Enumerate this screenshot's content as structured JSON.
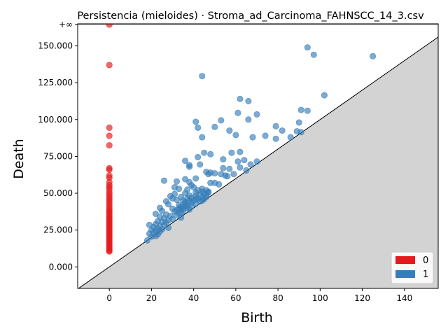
{
  "chart_data": {
    "type": "scatter",
    "title": "Persistencia (mieloides) · Stroma_ad_Carcinoma_FAHNSCC_14_3.csv",
    "xlabel": "Birth",
    "ylabel": "Death",
    "xlim": [
      -15,
      156
    ],
    "ylim": [
      -14600,
      165000
    ],
    "infinity_label": "+∞",
    "infinity_level": 164500,
    "diagonal": true,
    "x_ticks": [
      {
        "value": 0,
        "label": "0"
      },
      {
        "value": 20,
        "label": "20"
      },
      {
        "value": 40,
        "label": "40"
      },
      {
        "value": 60,
        "label": "60"
      },
      {
        "value": 80,
        "label": "80"
      },
      {
        "value": 100,
        "label": "100"
      },
      {
        "value": 120,
        "label": "120"
      },
      {
        "value": 140,
        "label": "140"
      }
    ],
    "y_ticks": [
      {
        "value": 0,
        "label": "0.000"
      },
      {
        "value": 25000,
        "label": "25.000"
      },
      {
        "value": 50000,
        "label": "50.000"
      },
      {
        "value": 75000,
        "label": "75.000"
      },
      {
        "value": 100000,
        "label": "100.000"
      },
      {
        "value": 125000,
        "label": "125.000"
      },
      {
        "value": 150000,
        "label": "150.000"
      }
    ],
    "legend": {
      "position": "lower-right",
      "entries": [
        "0",
        "1"
      ]
    },
    "colors": {
      "0": "#e41a1c",
      "1": "#377eb8",
      "shade": "#d3d3d3",
      "inf_line": "#808080"
    },
    "series": [
      {
        "name": "0",
        "color": "#e41a1c",
        "points": [
          [
            0,
            164500
          ],
          [
            0,
            137000
          ],
          [
            0,
            94500
          ],
          [
            0,
            89000
          ],
          [
            0,
            82500
          ],
          [
            0,
            67000
          ],
          [
            0,
            66000
          ],
          [
            0,
            62000
          ],
          [
            0,
            60500
          ],
          [
            0,
            57500
          ],
          [
            0,
            55500
          ],
          [
            0,
            54000
          ],
          [
            0,
            52500
          ],
          [
            0,
            50500
          ],
          [
            0,
            49000
          ],
          [
            0,
            47500
          ],
          [
            0,
            46000
          ],
          [
            0,
            44500
          ],
          [
            0,
            43000
          ],
          [
            0,
            41500
          ],
          [
            0,
            40000
          ],
          [
            0,
            38500
          ],
          [
            0,
            37500
          ],
          [
            0,
            36500
          ],
          [
            0,
            35000
          ],
          [
            0,
            34000
          ],
          [
            0,
            33000
          ],
          [
            0,
            32000
          ],
          [
            0,
            31000
          ],
          [
            0,
            30000
          ],
          [
            0,
            29000
          ],
          [
            0,
            28000
          ],
          [
            0,
            27000
          ],
          [
            0,
            26000
          ],
          [
            0,
            25000
          ],
          [
            0,
            24000
          ],
          [
            0,
            23000
          ],
          [
            0,
            22000
          ],
          [
            0,
            21000
          ],
          [
            0,
            20000
          ],
          [
            0,
            19000
          ],
          [
            0,
            18000
          ],
          [
            0,
            17000
          ],
          [
            0,
            16000
          ],
          [
            0,
            15000
          ],
          [
            0,
            14000
          ],
          [
            0,
            13000
          ],
          [
            0,
            12000
          ],
          [
            0,
            11000
          ],
          [
            0,
            10500
          ]
        ]
      },
      {
        "name": "1",
        "color": "#377eb8",
        "points": [
          [
            94,
            149000
          ],
          [
            125,
            143000
          ],
          [
            97,
            144000
          ],
          [
            44,
            129500
          ],
          [
            102,
            116500
          ],
          [
            62,
            114000
          ],
          [
            66,
            112500
          ],
          [
            91,
            106500
          ],
          [
            94,
            106000
          ],
          [
            61,
            104500
          ],
          [
            70,
            103500
          ],
          [
            53,
            99500
          ],
          [
            66,
            100000
          ],
          [
            41,
            98500
          ],
          [
            90,
            98000
          ],
          [
            79,
            95500
          ],
          [
            50,
            95000
          ],
          [
            42,
            94500
          ],
          [
            82,
            92500
          ],
          [
            57,
            92500
          ],
          [
            89,
            92000
          ],
          [
            91,
            91500
          ],
          [
            60,
            89500
          ],
          [
            74,
            89000
          ],
          [
            44,
            88000
          ],
          [
            68,
            88000
          ],
          [
            79,
            87000
          ],
          [
            86,
            88000
          ],
          [
            62,
            78000
          ],
          [
            45,
            77500
          ],
          [
            58,
            77500
          ],
          [
            48,
            76500
          ],
          [
            42,
            74500
          ],
          [
            54,
            73000
          ],
          [
            64,
            72500
          ],
          [
            36,
            72000
          ],
          [
            61,
            71500
          ],
          [
            70,
            71500
          ],
          [
            38,
            69000
          ],
          [
            43,
            69500
          ],
          [
            67,
            69500
          ],
          [
            38,
            68000
          ],
          [
            54,
            67000
          ],
          [
            57,
            66500
          ],
          [
            62,
            67500
          ],
          [
            65,
            65500
          ],
          [
            46,
            64500
          ],
          [
            47,
            63000
          ],
          [
            48,
            64000
          ],
          [
            50,
            63500
          ],
          [
            53,
            63000
          ],
          [
            55,
            62000
          ],
          [
            56,
            61500
          ],
          [
            59,
            63000
          ],
          [
            26,
            58500
          ],
          [
            36,
            59500
          ],
          [
            41,
            60000
          ],
          [
            32,
            58000
          ],
          [
            38,
            57500
          ],
          [
            48,
            57000
          ],
          [
            50,
            57000
          ],
          [
            52,
            56000
          ],
          [
            39,
            55500
          ],
          [
            31,
            54000
          ],
          [
            40,
            54000
          ],
          [
            33,
            53000
          ],
          [
            37,
            52500
          ],
          [
            42,
            52000
          ],
          [
            44,
            51000
          ],
          [
            47,
            50500
          ],
          [
            36,
            50000
          ],
          [
            31,
            49500
          ],
          [
            38,
            48500
          ],
          [
            29,
            48000
          ],
          [
            34,
            47500
          ],
          [
            46,
            47500
          ],
          [
            30,
            46500
          ],
          [
            41,
            46000
          ],
          [
            32,
            45500
          ],
          [
            44,
            45000
          ],
          [
            27,
            44500
          ],
          [
            36,
            44000
          ],
          [
            39,
            43500
          ],
          [
            28,
            42500
          ],
          [
            33,
            42000
          ],
          [
            37,
            41500
          ],
          [
            24,
            40000
          ],
          [
            30,
            39500
          ],
          [
            35,
            39500
          ],
          [
            38,
            39000
          ],
          [
            25,
            38000
          ],
          [
            31,
            37500
          ],
          [
            34,
            37000
          ],
          [
            22,
            36000
          ],
          [
            27,
            35500
          ],
          [
            32,
            35000
          ],
          [
            29,
            34500
          ],
          [
            24,
            34000
          ],
          [
            34,
            33500
          ],
          [
            26,
            33000
          ],
          [
            30,
            32500
          ],
          [
            28,
            31500
          ],
          [
            23,
            31000
          ],
          [
            25,
            30500
          ],
          [
            27,
            30000
          ],
          [
            19,
            28500
          ],
          [
            22,
            29000
          ],
          [
            26,
            28500
          ],
          [
            24,
            27500
          ],
          [
            21,
            27000
          ],
          [
            28,
            26500
          ],
          [
            23,
            26000
          ],
          [
            25,
            25500
          ],
          [
            20,
            25000
          ],
          [
            22,
            24500
          ],
          [
            24,
            24000
          ],
          [
            21,
            23000
          ],
          [
            19,
            22500
          ],
          [
            23,
            22000
          ],
          [
            22,
            21000
          ],
          [
            20,
            20500
          ],
          [
            18,
            18000
          ],
          [
            35,
            45000
          ],
          [
            37,
            46500
          ],
          [
            39,
            47000
          ],
          [
            41,
            48000
          ],
          [
            43,
            49000
          ],
          [
            45,
            50000
          ],
          [
            44,
            47000
          ],
          [
            42,
            46500
          ],
          [
            40,
            45000
          ],
          [
            36,
            42000
          ],
          [
            34,
            41000
          ],
          [
            33,
            39500
          ],
          [
            32,
            38500
          ],
          [
            35,
            38000
          ],
          [
            37,
            40000
          ],
          [
            39,
            41500
          ],
          [
            41,
            43000
          ],
          [
            43,
            44500
          ],
          [
            45,
            46000
          ],
          [
            46,
            48500
          ],
          [
            47,
            51000
          ],
          [
            46,
            52000
          ],
          [
            44,
            53000
          ],
          [
            41,
            50500
          ],
          [
            38,
            45000
          ],
          [
            36,
            43000
          ],
          [
            34,
            40000
          ],
          [
            33,
            36500
          ]
        ]
      }
    ]
  }
}
